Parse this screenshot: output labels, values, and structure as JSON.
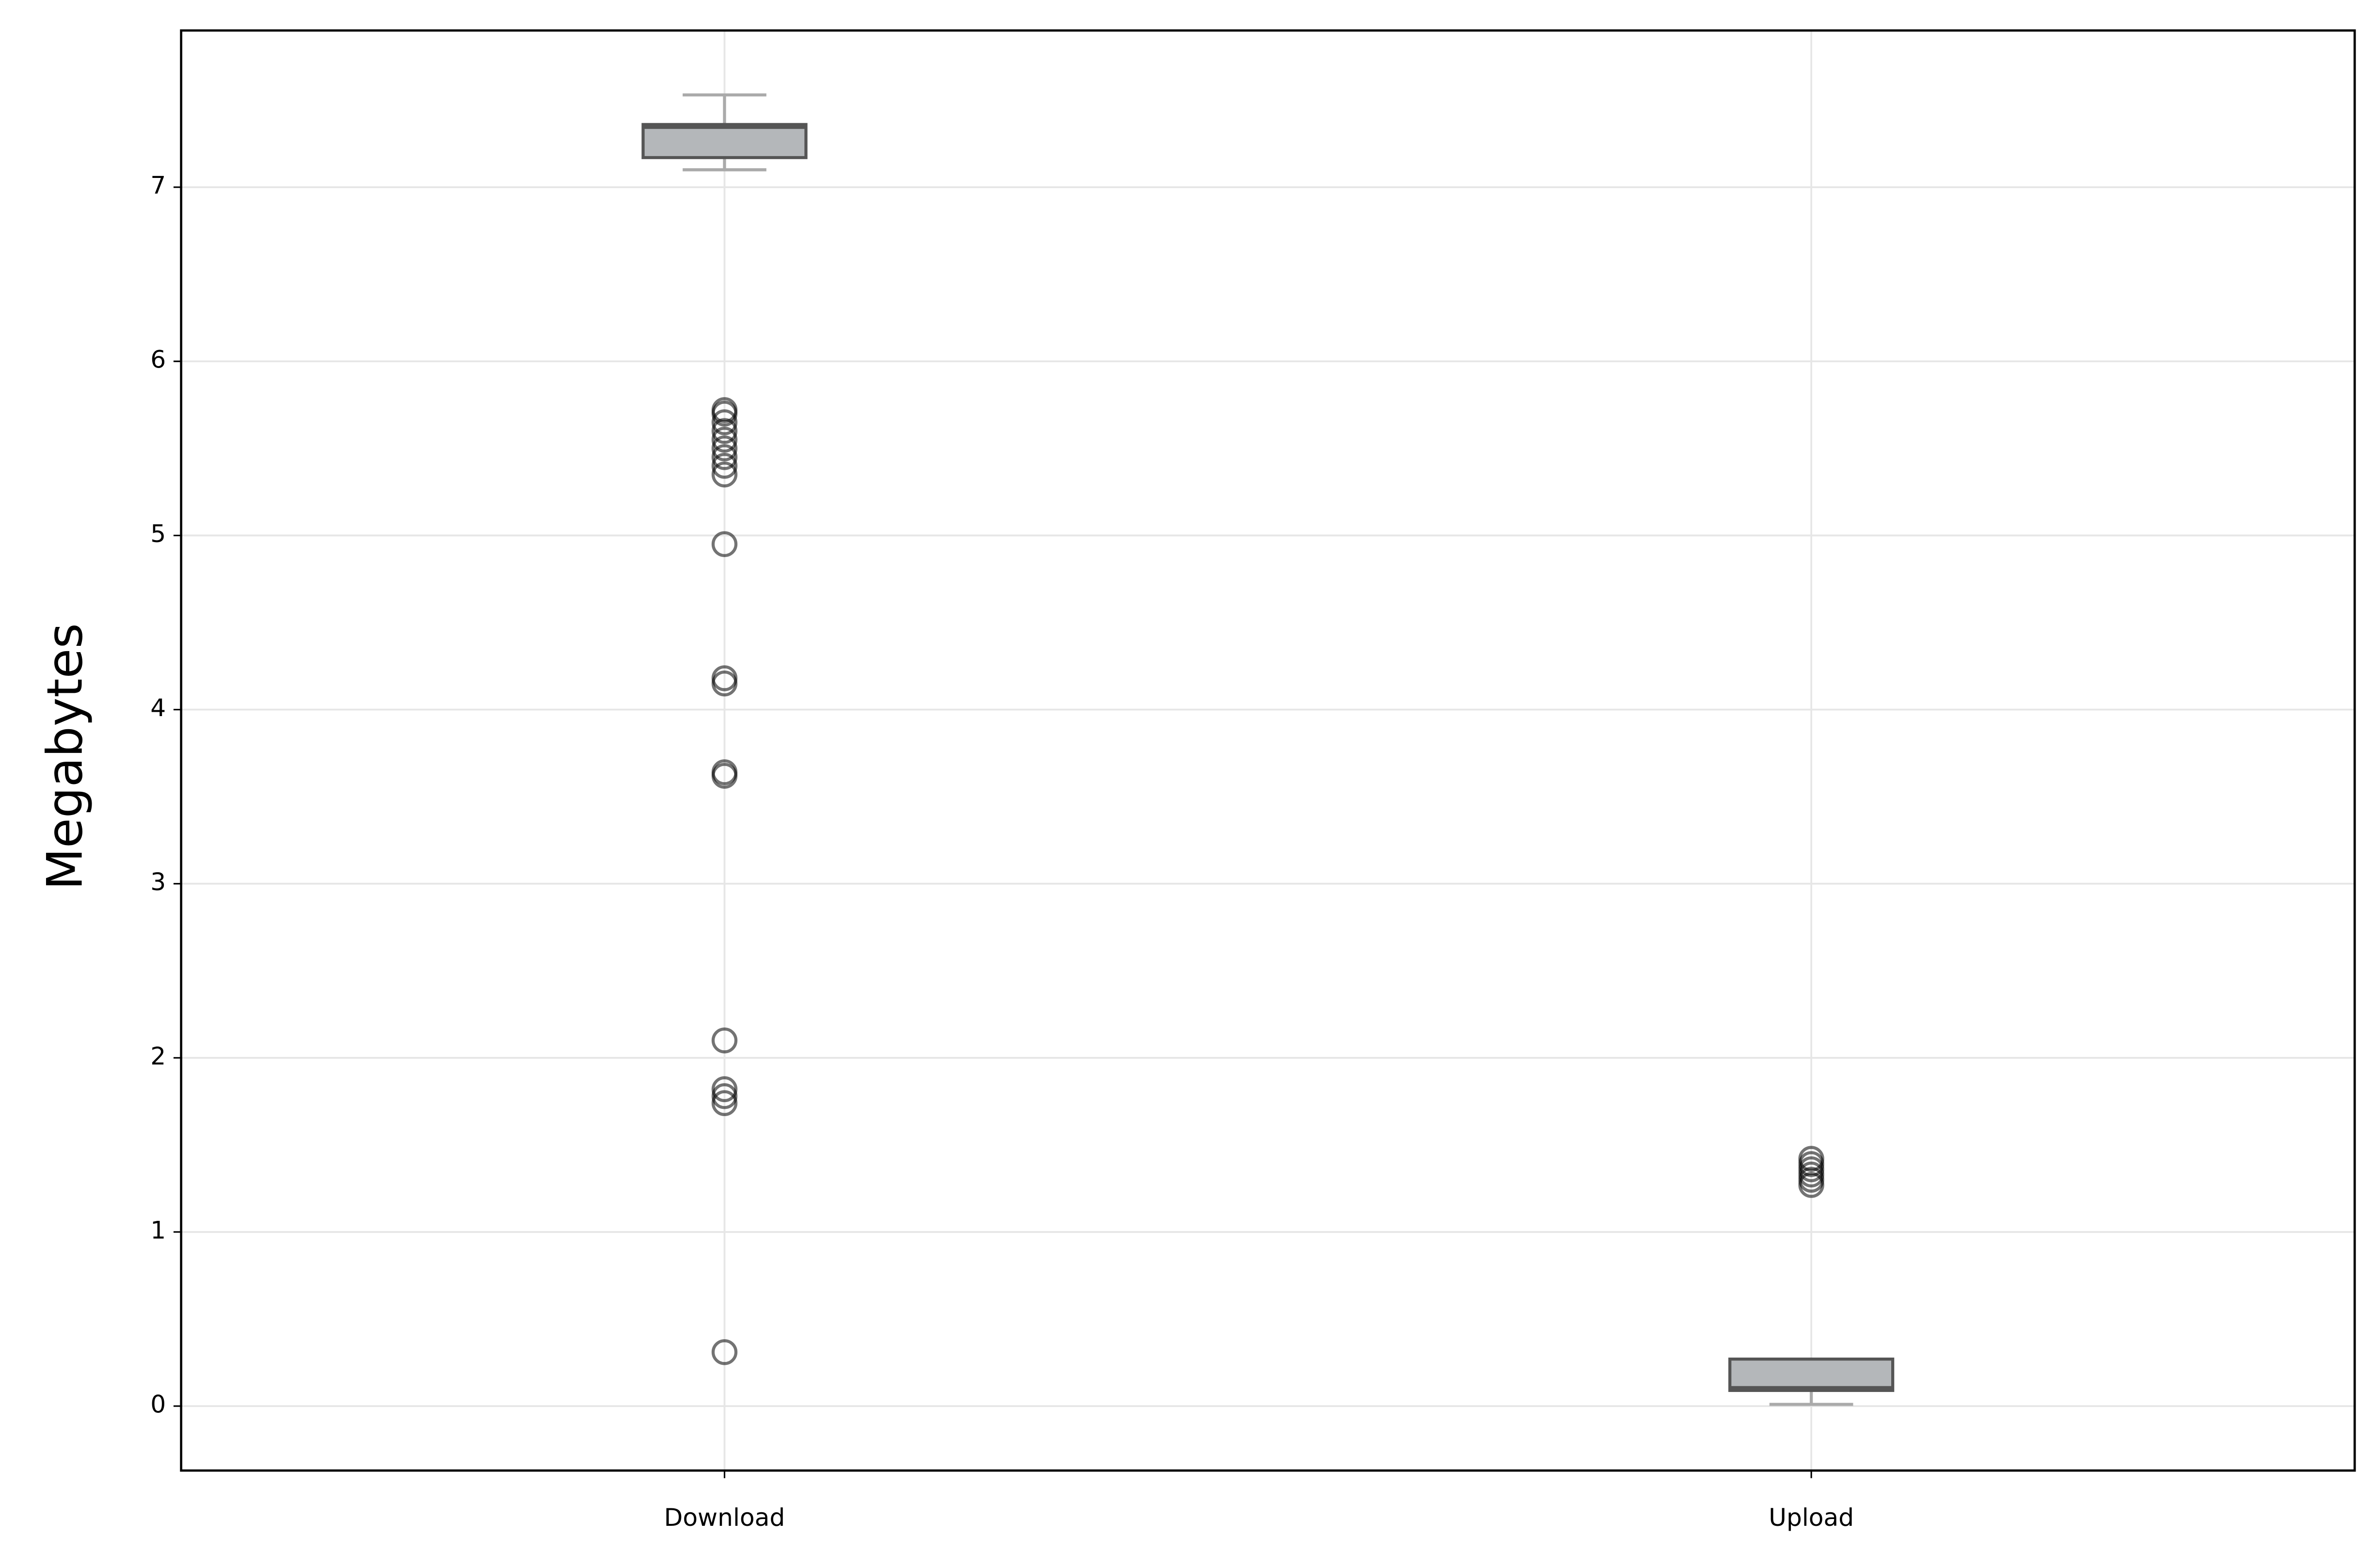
{
  "chart_data": {
    "type": "box",
    "ylabel": "Megabytes",
    "categories": [
      "Download",
      "Upload"
    ],
    "stats": [
      {
        "whisker_low": 7.1,
        "q1": 7.17,
        "median": 7.35,
        "q3": 7.36,
        "whisker_high": 7.53,
        "outliers": [
          5.72,
          5.7,
          5.65,
          5.6,
          5.55,
          5.5,
          5.45,
          5.4,
          5.35,
          4.95,
          4.18,
          4.15,
          3.64,
          3.62,
          2.1,
          1.82,
          1.78,
          1.74,
          0.31
        ]
      },
      {
        "whisker_low": 0.01,
        "q1": 0.09,
        "median": 0.1,
        "q3": 0.27,
        "whisker_high": 0.27,
        "outliers": [
          1.27,
          1.3,
          1.33,
          1.36,
          1.39,
          1.42
        ]
      }
    ],
    "box_color": "#b4b7ba",
    "edge_color": "#555555",
    "whisker_color": "#aaaaaa",
    "outlier_color": "#000000",
    "ylim": [
      -0.37,
      7.9
    ],
    "yticks": [
      0,
      1,
      2,
      3,
      4,
      5,
      6,
      7
    ],
    "grid": true
  }
}
